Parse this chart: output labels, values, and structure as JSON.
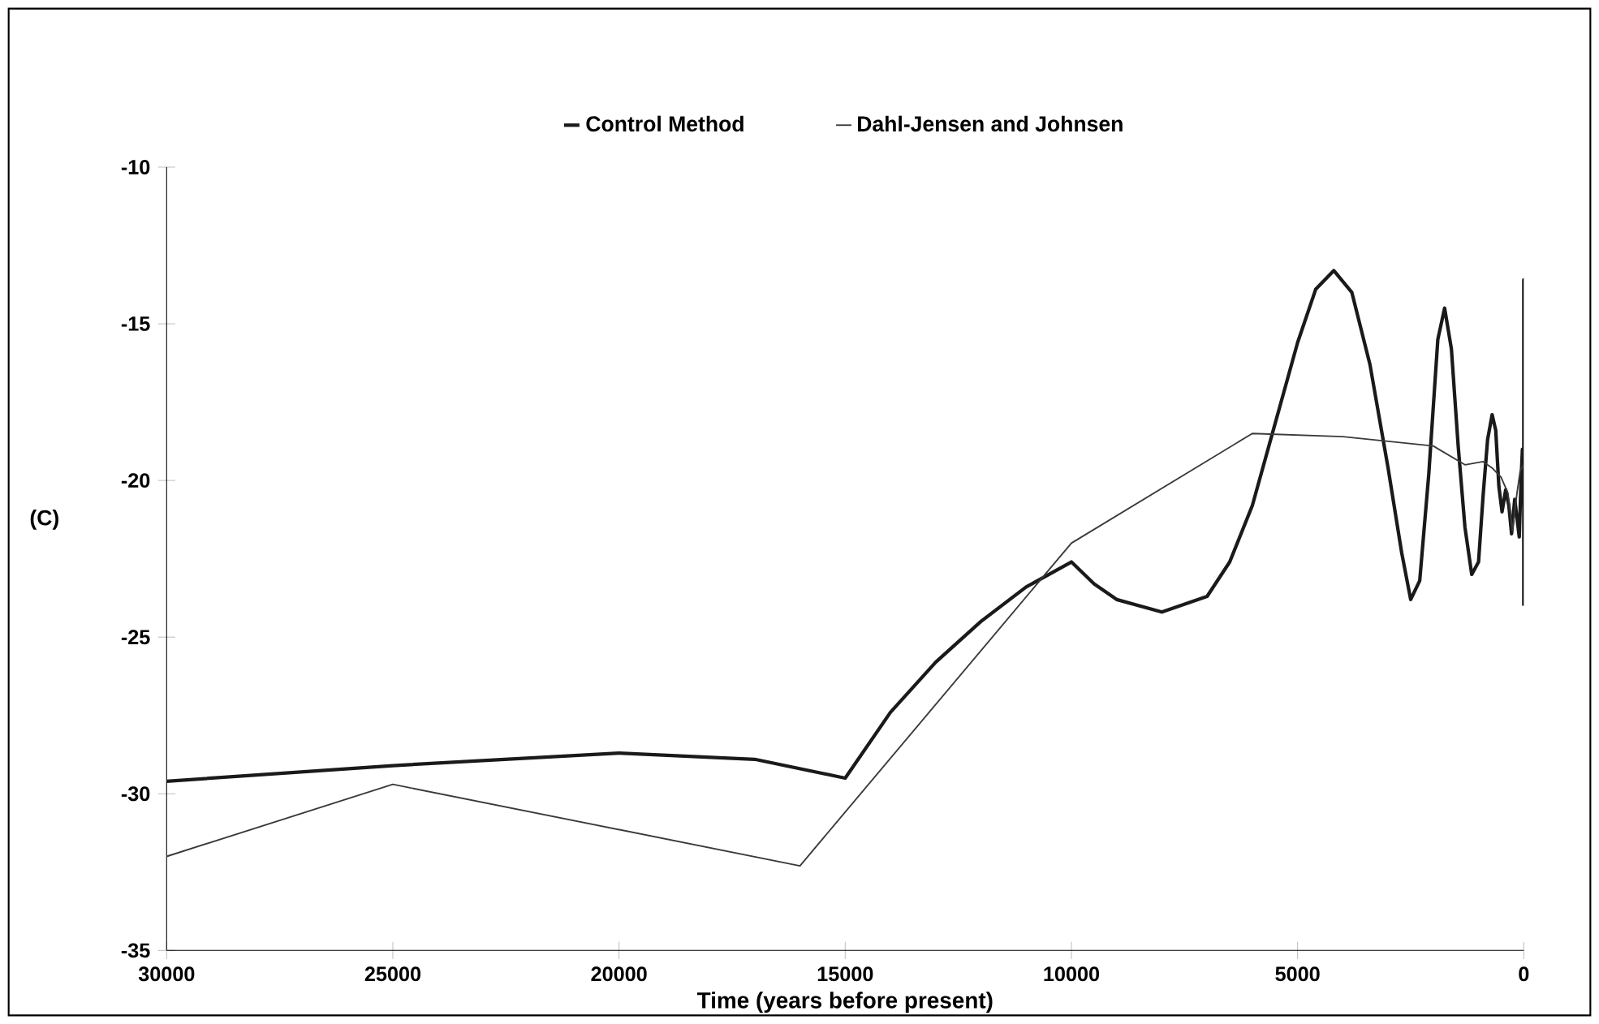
{
  "chart_data": {
    "type": "line",
    "xlabel": "Time (years before present)",
    "ylabel": "(C)",
    "xlim": [
      30000,
      0
    ],
    "xticks": [
      30000,
      25000,
      20000,
      15000,
      10000,
      5000,
      0
    ],
    "ylim": [
      -35,
      -10
    ],
    "yticks": [
      -35,
      -30,
      -25,
      -20,
      -15,
      -10
    ],
    "grid": false,
    "legend": "top",
    "marker": "none",
    "line_style": "solid",
    "series": [
      {
        "name": "Control Method",
        "color": "#1a1a1a",
        "x": [
          30000,
          25000,
          20000,
          17000,
          15000,
          14000,
          13000,
          12000,
          11000,
          10000,
          9500,
          9000,
          8000,
          7000,
          6500,
          6000,
          5500,
          5000,
          4600,
          4200,
          3800,
          3400,
          3000,
          2700,
          2500,
          2300,
          2100,
          1900,
          1750,
          1600,
          1450,
          1300,
          1150,
          1000,
          900,
          800,
          700,
          620,
          550,
          480,
          400,
          330,
          270,
          200,
          150,
          100,
          60,
          30,
          0,
          0,
          0
        ],
        "values": [
          -29.6,
          -29.1,
          -28.7,
          -28.9,
          -29.5,
          -27.4,
          -25.8,
          -24.5,
          -23.4,
          -22.6,
          -23.3,
          -23.8,
          -24.2,
          -23.7,
          -22.6,
          -20.8,
          -18.2,
          -15.6,
          -13.9,
          -13.3,
          -14.0,
          -16.3,
          -19.6,
          -22.3,
          -23.8,
          -23.2,
          -19.8,
          -15.5,
          -14.5,
          -15.8,
          -18.9,
          -21.5,
          -23.0,
          -22.6,
          -20.5,
          -18.7,
          -17.9,
          -18.4,
          -20.2,
          -21.0,
          -20.3,
          -20.8,
          -21.7,
          -20.6,
          -21.2,
          -21.8,
          -20.0,
          -19.0,
          -19.6,
          -13.6,
          -24.0
        ]
      },
      {
        "name": "Dahl-Jensen and Johnsen",
        "color": "#3a3a3a",
        "x": [
          30000,
          25000,
          16000,
          10000,
          6000,
          4000,
          2000,
          1300,
          900,
          700,
          500,
          350,
          250,
          150,
          80,
          0
        ],
        "values": [
          -32.0,
          -29.7,
          -32.3,
          -22.0,
          -18.5,
          -18.6,
          -18.9,
          -19.5,
          -19.4,
          -19.6,
          -19.9,
          -20.4,
          -21.6,
          -20.4,
          -19.7,
          -19.5
        ]
      }
    ]
  }
}
